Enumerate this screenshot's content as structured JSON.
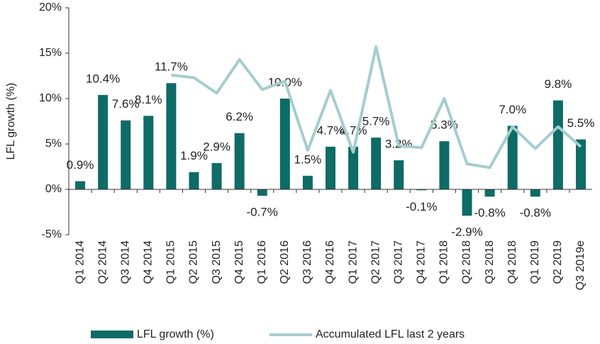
{
  "chart_data": {
    "type": "bar",
    "categories": [
      "Q1 2014",
      "Q2 2014",
      "Q3 2014",
      "Q4 2014",
      "Q1 2015",
      "Q2 2015",
      "Q3 2015",
      "Q4 2015",
      "Q1 2016",
      "Q2 2016",
      "Q3 2016",
      "Q4 2016",
      "Q1 2017",
      "Q2 2017",
      "Q3 2017",
      "Q4 2017",
      "Q1 2018",
      "Q2 2018",
      "Q3 2018",
      "Q4 2018",
      "Q1 2019",
      "Q2 2019",
      "Q3 2019e"
    ],
    "series": [
      {
        "name": "LFL growth (%)",
        "type": "bar",
        "color": "#0e6b66",
        "values": [
          0.9,
          10.4,
          7.6,
          8.1,
          11.7,
          1.9,
          2.9,
          6.2,
          -0.7,
          10.0,
          1.5,
          4.7,
          4.7,
          5.7,
          3.2,
          -0.1,
          5.3,
          -2.9,
          -0.8,
          7.0,
          -0.8,
          9.8,
          5.5
        ],
        "value_labels": [
          "0.9%",
          "10.4%",
          "7.6%",
          "8.1%",
          "11.7%",
          "1.9%",
          "2.9%",
          "6.2%",
          "-0.7%",
          "10.0%",
          "1.5%",
          "4.7%",
          "4.7%",
          "5.7%",
          "3.2%",
          "-0.1%",
          "5.3%",
          "-2.9%",
          "-0.8%",
          "7.0%",
          "-0.8%",
          "9.8%",
          "5.5%"
        ]
      },
      {
        "name": "Accumulated LFL last 2 years",
        "type": "line",
        "color": "#a5cdcd",
        "values": [
          null,
          null,
          null,
          null,
          12.6,
          12.3,
          10.6,
          14.3,
          11.0,
          11.9,
          4.3,
          10.9,
          4.1,
          15.7,
          4.8,
          4.6,
          10.0,
          2.8,
          2.4,
          6.9,
          4.5,
          6.9,
          4.7
        ]
      }
    ],
    "y_label": "LFL growth (%)",
    "ylim": [
      -5,
      20
    ],
    "yticks": [
      {
        "value": -5,
        "label": "-5%"
      },
      {
        "value": 0,
        "label": "0%"
      },
      {
        "value": 5,
        "label": "5%"
      },
      {
        "value": 10,
        "label": "10%"
      },
      {
        "value": 15,
        "label": "15%"
      },
      {
        "value": 20,
        "label": "20%"
      }
    ],
    "grid": false,
    "legend": "bottom"
  }
}
